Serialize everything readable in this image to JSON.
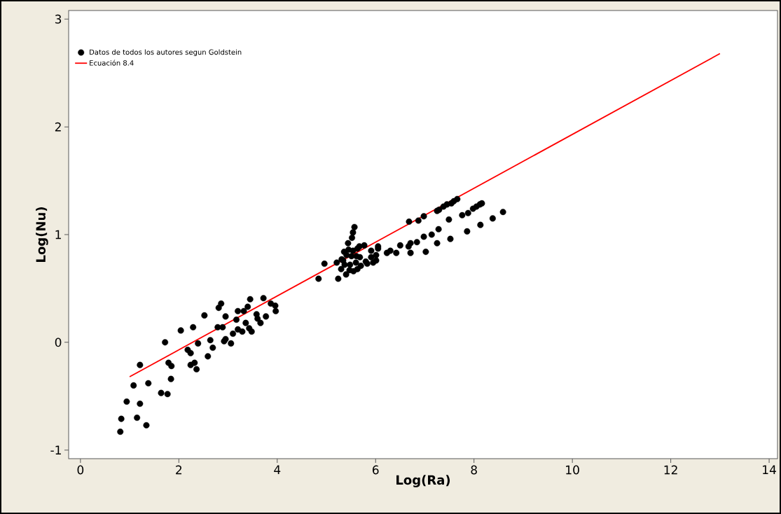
{
  "chart_data": {
    "type": "scatter",
    "xlabel": "Log(Ra)",
    "ylabel": "Log(Nu)",
    "xlim": [
      -0.24,
      14.17
    ],
    "ylim": [
      -1.08,
      3.08
    ],
    "xticks": [
      0,
      2,
      4,
      6,
      8,
      10,
      12,
      14
    ],
    "yticks": [
      -1,
      0,
      1,
      2,
      3
    ],
    "legend": "top left",
    "series": [
      {
        "name": "Datos de todos los autores segun Goldstein",
        "color": "#000000",
        "marker": "circle",
        "x": [
          0.81,
          0.83,
          0.94,
          1.08,
          1.15,
          1.21,
          1.21,
          1.34,
          1.38,
          1.64,
          1.72,
          1.77,
          1.79,
          1.85,
          1.84,
          2.04,
          2.18,
          2.24,
          2.29,
          2.24,
          2.32,
          2.36,
          2.39,
          2.52,
          2.59,
          2.64,
          2.69,
          2.79,
          2.81,
          2.86,
          2.89,
          2.95,
          2.95,
          2.92,
          3.06,
          3.1,
          3.17,
          3.2,
          3.2,
          3.29,
          3.32,
          3.36,
          3.4,
          3.43,
          3.45,
          3.48,
          3.58,
          3.6,
          3.66,
          3.72,
          3.77,
          3.87,
          3.96,
          3.97,
          4.84,
          4.96,
          5.21,
          5.24,
          5.3,
          5.34,
          5.36,
          5.4,
          5.44,
          5.48,
          5.52,
          5.54,
          5.57,
          5.54,
          5.55,
          5.61,
          5.63,
          5.67,
          5.7,
          5.77,
          5.83,
          5.91,
          5.95,
          6.01,
          6.05,
          6.01,
          5.41,
          5.45,
          5.31,
          5.6,
          5.63,
          5.68,
          5.8,
          5.91,
          5.37,
          5.47,
          5.51,
          6.68,
          6.87,
          6.98,
          7.25,
          7.29,
          7.38,
          7.45,
          7.54,
          7.59,
          7.66,
          7.49,
          7.76,
          7.88,
          7.98,
          8.05,
          8.12,
          8.16,
          8.59,
          8.38,
          8.13,
          7.86,
          7.52,
          7.28,
          7.14,
          7.25,
          6.98,
          6.84,
          6.71,
          6.67,
          6.71,
          7.02,
          6.5,
          6.42,
          6.3,
          6.23,
          6.05
        ],
        "values": [
          -0.83,
          -0.71,
          -0.55,
          -0.4,
          -0.7,
          -0.21,
          -0.57,
          -0.77,
          -0.38,
          -0.47,
          0.0,
          -0.48,
          -0.19,
          -0.22,
          -0.34,
          0.11,
          -0.07,
          -0.1,
          0.14,
          -0.21,
          -0.19,
          -0.25,
          -0.01,
          0.25,
          -0.13,
          0.02,
          -0.05,
          0.14,
          0.32,
          0.36,
          0.14,
          0.24,
          0.03,
          0.01,
          -0.01,
          0.08,
          0.21,
          0.29,
          0.12,
          0.1,
          0.29,
          0.18,
          0.33,
          0.13,
          0.4,
          0.1,
          0.26,
          0.22,
          0.18,
          0.41,
          0.24,
          0.36,
          0.34,
          0.29,
          0.59,
          0.73,
          0.74,
          0.59,
          0.68,
          0.76,
          0.84,
          0.63,
          0.92,
          0.72,
          0.97,
          1.02,
          1.07,
          0.85,
          0.66,
          0.8,
          0.68,
          0.89,
          0.71,
          0.9,
          0.73,
          0.85,
          0.74,
          0.81,
          0.87,
          0.76,
          0.81,
          0.86,
          0.77,
          0.74,
          0.87,
          0.79,
          0.75,
          0.79,
          0.72,
          0.67,
          0.8,
          1.12,
          1.13,
          1.17,
          1.22,
          1.23,
          1.26,
          1.28,
          1.29,
          1.31,
          1.33,
          1.14,
          1.18,
          1.2,
          1.24,
          1.26,
          1.28,
          1.29,
          1.21,
          1.15,
          1.09,
          1.03,
          0.96,
          1.05,
          1.0,
          0.92,
          0.98,
          0.93,
          0.92,
          0.89,
          0.83,
          0.84,
          0.9,
          0.83,
          0.85,
          0.83,
          0.89
        ]
      },
      {
        "name": "Ecuación 8.4",
        "type": "line",
        "marker": "none",
        "color": "#ff0000",
        "x": [
          1,
          13
        ],
        "values": [
          -0.32,
          2.68
        ]
      }
    ]
  }
}
